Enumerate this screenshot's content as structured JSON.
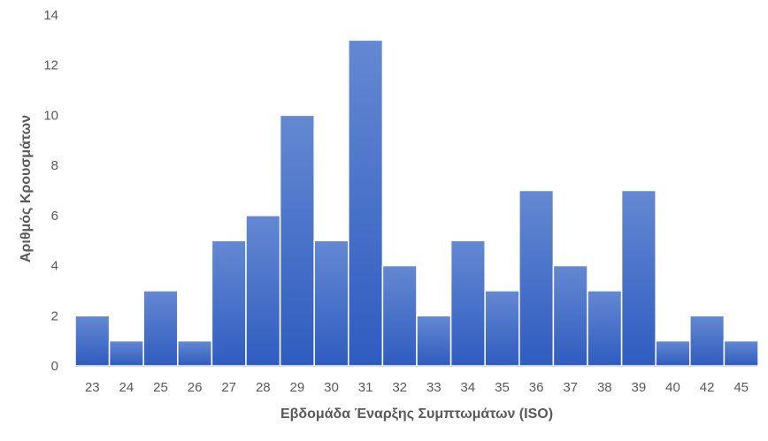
{
  "chart_data": {
    "type": "bar",
    "categories": [
      "23",
      "24",
      "25",
      "26",
      "27",
      "28",
      "29",
      "30",
      "31",
      "32",
      "33",
      "34",
      "35",
      "36",
      "37",
      "38",
      "39",
      "40",
      "42",
      "45"
    ],
    "values": [
      2,
      1,
      3,
      1,
      5,
      6,
      10,
      5,
      13,
      4,
      2,
      5,
      3,
      7,
      4,
      3,
      7,
      1,
      2,
      1
    ],
    "title": "",
    "xlabel": "Εβδομάδα Έναρξης Συμπτωμάτων (ISO)",
    "ylabel": "Αριθμός Κρουσμάτων",
    "ylim": [
      0,
      14
    ],
    "yticks": [
      0,
      2,
      4,
      6,
      8,
      10,
      12,
      14
    ],
    "grid": false,
    "legend": "none",
    "bar_color": "#4472C4"
  }
}
